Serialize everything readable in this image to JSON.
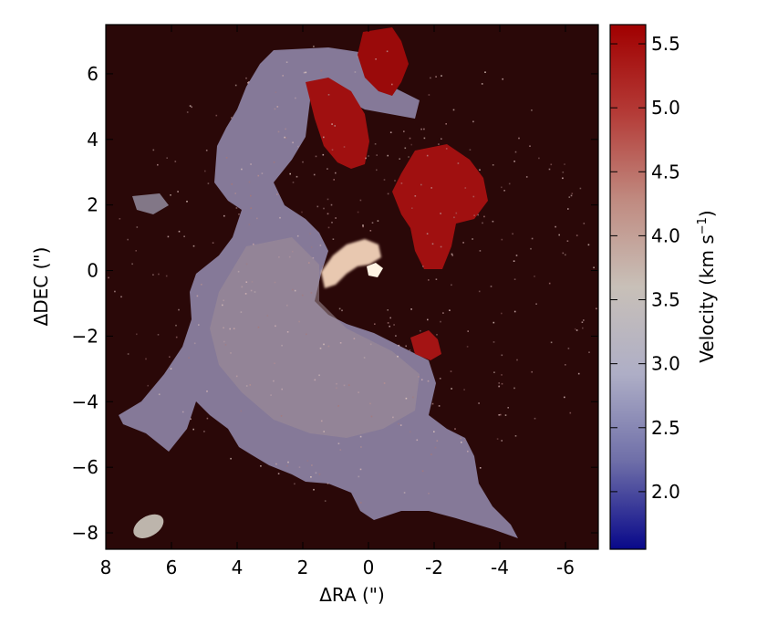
{
  "chart_data": {
    "type": "heatmap",
    "title": "",
    "xlabel": "ΔRA (\")",
    "ylabel": "ΔDEC (\")",
    "xlim": [
      8,
      -7
    ],
    "ylim": [
      -8.5,
      7.5
    ],
    "x_ticks": [
      8,
      6,
      4,
      2,
      0,
      -2,
      -4,
      -6
    ],
    "x_tick_labels": [
      "8",
      "6",
      "4",
      "2",
      "0",
      "-2",
      "-4",
      "-6"
    ],
    "y_ticks": [
      6,
      4,
      2,
      0,
      -2,
      -4,
      -6,
      -8
    ],
    "y_tick_labels": [
      "6",
      "4",
      "2",
      "0",
      "−2",
      "−4",
      "−6",
      "−8"
    ],
    "grid": false,
    "background_color": "#2a0808",
    "colorbar": {
      "label": "Velocity (km s",
      "label_superscript": "−1",
      "label_close": ")",
      "range": [
        1.55,
        5.65
      ],
      "ticks": [
        2.0,
        2.5,
        3.0,
        3.5,
        4.0,
        4.5,
        5.0,
        5.5
      ],
      "tick_labels": [
        "2.0",
        "2.5",
        "3.0",
        "3.5",
        "4.0",
        "4.5",
        "5.0",
        "5.5"
      ],
      "colormap": [
        "#08088a",
        "#6e6ea8",
        "#aeaec6",
        "#c8c0b8",
        "#c08a80",
        "#b43a36",
        "#a00000"
      ]
    },
    "features": [
      {
        "name": "extended emission",
        "velocity_km_s": 3.4
      },
      {
        "name": "northern clump",
        "velocity_km_s": 5.6
      },
      {
        "name": "north-eastern clump",
        "velocity_km_s": 5.5
      },
      {
        "name": "eastern clump",
        "velocity_km_s": 5.5
      },
      {
        "name": "small southern clump",
        "velocity_km_s": 5.4
      },
      {
        "name": "central bright arc",
        "velocity_km_s": 4.2
      }
    ],
    "beam": {
      "x": 6.7,
      "y": -7.8,
      "color": "#bdb5ac"
    }
  }
}
